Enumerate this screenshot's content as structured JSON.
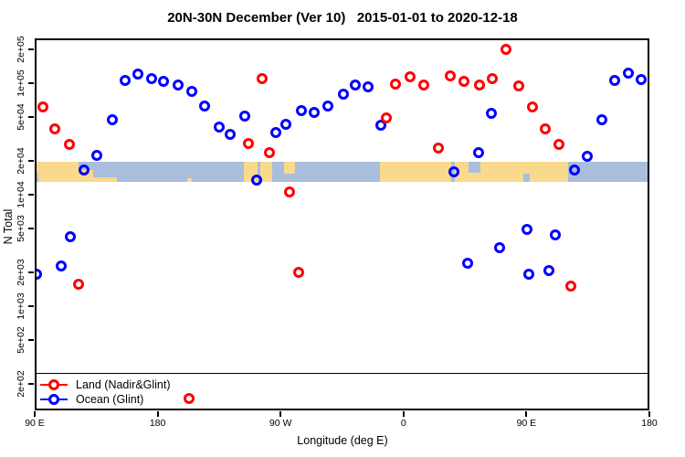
{
  "title": "20N-30N December (Ver 10)   2015-01-01 to 2020-12-18",
  "axes": {
    "x": {
      "title": "Longitude (deg E)",
      "ticks": [
        {
          "deg": 90,
          "label": "90 E"
        },
        {
          "deg": 180,
          "label": "180"
        },
        {
          "deg": 270,
          "label": "90 W"
        },
        {
          "deg": 360,
          "label": "0"
        },
        {
          "deg": 450,
          "label": "90 E"
        },
        {
          "deg": 540,
          "label": "180"
        }
      ]
    },
    "y": {
      "title": "N Total",
      "ticks": [
        {
          "value": 200000,
          "label": "2e+05"
        },
        {
          "value": 100000,
          "label": "1e+05"
        },
        {
          "value": 50000,
          "label": "5e+04"
        },
        {
          "value": 20000,
          "label": "2e+04"
        },
        {
          "value": 10000,
          "label": "1e+04"
        },
        {
          "value": 5000,
          "label": "5e+03"
        },
        {
          "value": 2000,
          "label": "2e+03"
        },
        {
          "value": 1000,
          "label": "1e+03"
        },
        {
          "value": 500,
          "label": "5e+02"
        },
        {
          "value": 200,
          "label": "2e+02"
        }
      ]
    }
  },
  "legend": {
    "items": [
      {
        "label": "Land (Nadir&Glint)",
        "color": "#FF0000"
      },
      {
        "label": "Ocean (Glint)",
        "color": "#0000FF"
      }
    ]
  },
  "colors": {
    "land_point": "#FF0000",
    "ocean_point": "#0000FF",
    "map_land": "#F9D98B",
    "map_ocean": "#A9BEDC"
  },
  "chart_data": {
    "type": "scatter",
    "title": "20N-30N December (Ver 10)   2015-01-01 to 2020-12-18",
    "xlabel": "Longitude (deg E)",
    "ylabel": "N Total",
    "x_axis_note": "longitude plotted from 90E eastward over 450 degrees (wraps past 180 through 90W and 0 back to 180)",
    "x_range_deg": [
      90,
      540
    ],
    "y_scale": "log",
    "y_range": [
      116,
      252000
    ],
    "hline_n": 250,
    "map_band": {
      "n_top": 19700,
      "n_bottom": 13000,
      "land_segments": [
        {
          "lon": [
            90,
            122
          ],
          "top": 0,
          "h": 1
        },
        {
          "lon": [
            122,
            132.8
          ],
          "top": 0.4,
          "h": 0.6
        },
        {
          "lon": [
            132.8,
            150
          ],
          "top": 0.75,
          "h": 0.25
        },
        {
          "lon": [
            201.7,
            205
          ],
          "top": 0.8,
          "h": 0.2
        },
        {
          "lon": [
            243,
            253.2
          ],
          "top": 0,
          "h": 1
        },
        {
          "lon": [
            255.2,
            263.8
          ],
          "top": 0,
          "h": 1
        },
        {
          "lon": [
            272.5,
            280.5
          ],
          "top": 0,
          "h": 0.6
        },
        {
          "lon": [
            342.7,
            394.9
          ],
          "top": 0,
          "h": 1
        },
        {
          "lon": [
            397.5,
            407.5
          ],
          "top": 0,
          "h": 1
        },
        {
          "lon": [
            407.5,
            416.3
          ],
          "top": 0.55,
          "h": 0.45
        },
        {
          "lon": [
            416.3,
            480.5
          ],
          "top": 0,
          "h": 1
        }
      ],
      "ocean_notches": [
        {
          "lon": [
            90,
            92.5
          ],
          "top": 0.55,
          "h": 0.45
        },
        {
          "lon": [
            448,
            452.5
          ],
          "top": 0.6,
          "h": 0.4
        }
      ]
    },
    "series": [
      {
        "name": "Land (Nadir&Glint)",
        "color": "#FF0000",
        "points": [
          [
            96,
            61000
          ],
          [
            104.7,
            39000
          ],
          [
            115.4,
            28200
          ],
          [
            122.1,
            1570
          ],
          [
            203,
            149
          ],
          [
            246.4,
            28800
          ],
          [
            256.5,
            110000
          ],
          [
            261.8,
            23800
          ],
          [
            276.5,
            10600
          ],
          [
            283.2,
            2010
          ],
          [
            347.4,
            48900
          ],
          [
            354.1,
            98000
          ],
          [
            364.8,
            114000
          ],
          [
            374.8,
            96400
          ],
          [
            385.5,
            26200
          ],
          [
            394.2,
            116000
          ],
          [
            404.2,
            104000
          ],
          [
            415.6,
            96400
          ],
          [
            425,
            110000
          ],
          [
            435,
            201000
          ],
          [
            444.4,
            94500
          ],
          [
            454.4,
            61000
          ],
          [
            463.8,
            39000
          ],
          [
            473.8,
            28200
          ],
          [
            482.5,
            1510
          ]
        ]
      },
      {
        "name": "Ocean (Glint)",
        "color": "#0000FF",
        "points": [
          [
            91.5,
            1940
          ],
          [
            109.4,
            2300
          ],
          [
            116.1,
            4200
          ],
          [
            126.1,
            16600
          ],
          [
            135.5,
            22500
          ],
          [
            146.8,
            47000
          ],
          [
            156.2,
            106000
          ],
          [
            165.5,
            121000
          ],
          [
            175.6,
            110000
          ],
          [
            184.3,
            104000
          ],
          [
            195,
            96400
          ],
          [
            205,
            84300
          ],
          [
            214.4,
            62400
          ],
          [
            225.1,
            40400
          ],
          [
            233.1,
            34800
          ],
          [
            243.8,
            50700
          ],
          [
            252.4,
            13500
          ],
          [
            266.5,
            36000
          ],
          [
            273.9,
            42800
          ],
          [
            285.2,
            56700
          ],
          [
            294.6,
            54700
          ],
          [
            304.6,
            62400
          ],
          [
            316,
            79800
          ],
          [
            324.7,
            96400
          ],
          [
            334,
            92700
          ],
          [
            343.4,
            42000
          ],
          [
            396.9,
            16000
          ],
          [
            406.9,
            2430
          ],
          [
            414.9,
            23800
          ],
          [
            424.3,
            53700
          ],
          [
            430.3,
            3350
          ],
          [
            450.4,
            4840
          ],
          [
            451.7,
            1940
          ],
          [
            466.4,
            2090
          ],
          [
            471.2,
            4330
          ],
          [
            485.1,
            16600
          ],
          [
            494.5,
            22100
          ],
          [
            505.2,
            47000
          ],
          [
            514.6,
            106000
          ],
          [
            524.6,
            123000
          ],
          [
            534,
            108000
          ]
        ]
      }
    ]
  }
}
